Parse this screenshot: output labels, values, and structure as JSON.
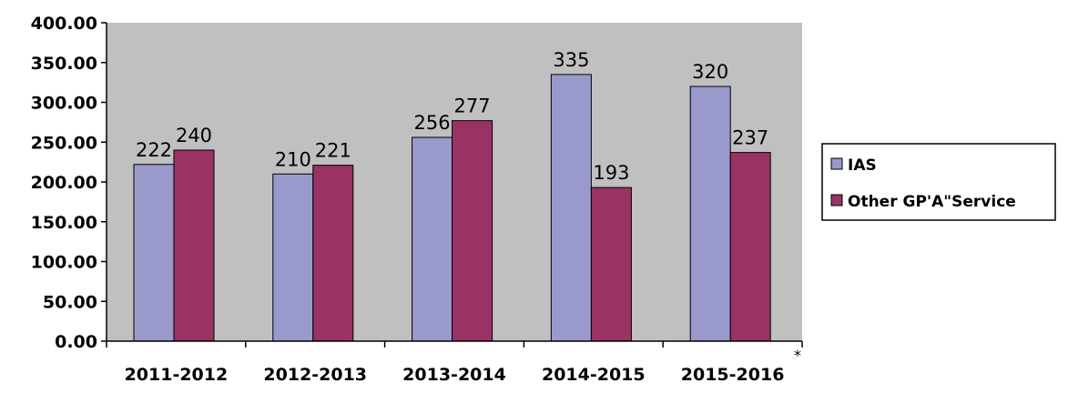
{
  "chart_data": {
    "type": "bar",
    "title": "",
    "xlabel": "",
    "ylabel": "",
    "categories": [
      "2011-2012",
      "2012-2013",
      "2013-2014",
      "2014-2015",
      "2015-2016"
    ],
    "series": [
      {
        "name": "IAS",
        "values": [
          222,
          210,
          256,
          335,
          320
        ],
        "data_labels": [
          "222",
          "210",
          "256",
          "335",
          "320"
        ],
        "color": "#9999cc"
      },
      {
        "name": "Other GP'A\"Service",
        "values": [
          240,
          221,
          277,
          193,
          237
        ],
        "data_labels": [
          "240",
          "221",
          "277",
          "193",
          "237"
        ],
        "color": "#993366"
      }
    ],
    "ylim": [
      0,
      400
    ],
    "yticks": [
      0,
      50,
      100,
      150,
      200,
      250,
      300,
      350,
      400
    ],
    "ytick_labels": [
      "0.00",
      "50.00",
      "100.00",
      "150.00",
      "200.00",
      "250.00",
      "300.00",
      "350.00",
      "400.00"
    ],
    "plot_background": "#c0c0c0",
    "grid": false,
    "legend_position": "right",
    "footnote_mark": "*"
  }
}
